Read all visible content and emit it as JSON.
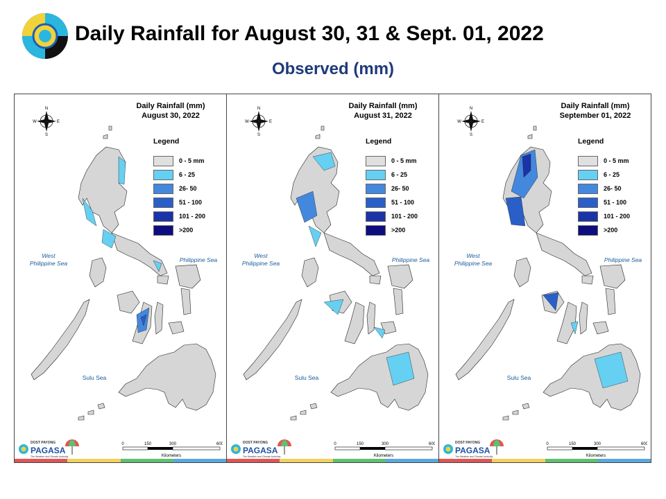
{
  "header": {
    "title": "Daily Rainfall for August 30, 31 & Sept. 01, 2022",
    "subtitle": "Observed (mm)"
  },
  "legend": {
    "title": "Legend",
    "items": [
      {
        "label": "0 - 5 mm",
        "color": "#e0e0e0"
      },
      {
        "label": "6 - 25",
        "color": "#66d0f2"
      },
      {
        "label": "26- 50",
        "color": "#4488dd"
      },
      {
        "label": "51 - 100",
        "color": "#2a5fc8"
      },
      {
        "label": "101 - 200",
        "color": "#1a34a8"
      },
      {
        "label": ">200",
        "color": "#0d0d80"
      }
    ]
  },
  "panels": [
    {
      "title_line1": "Daily Rainfall (mm)",
      "title_line2": "August 30, 2022"
    },
    {
      "title_line1": "Daily Rainfall (mm)",
      "title_line2": "August 31, 2022"
    },
    {
      "title_line1": "Daily Rainfall (mm)",
      "title_line2": "September 01, 2022"
    }
  ],
  "seas": {
    "west_line1": "West",
    "west_line2": "Philippine Sea",
    "east": "Philippine Sea",
    "sulu": "Sulu Sea"
  },
  "compass": {
    "n": "N",
    "s": "S",
    "e": "E",
    "w": "W"
  },
  "scale": {
    "ticks": [
      "0",
      "150",
      "300",
      "600"
    ],
    "unit": "Kilometers"
  },
  "brand": {
    "name": "PAGASA",
    "top_text": "DOST PAYONG",
    "tagline": "The Weather and Climate Authority"
  },
  "colors": {
    "land": "#d6d6d6",
    "border": "#222222",
    "title": "#1f3a7a",
    "strip": [
      "#e05555",
      "#f2d25a",
      "#5fc070",
      "#5aa8e0"
    ]
  }
}
